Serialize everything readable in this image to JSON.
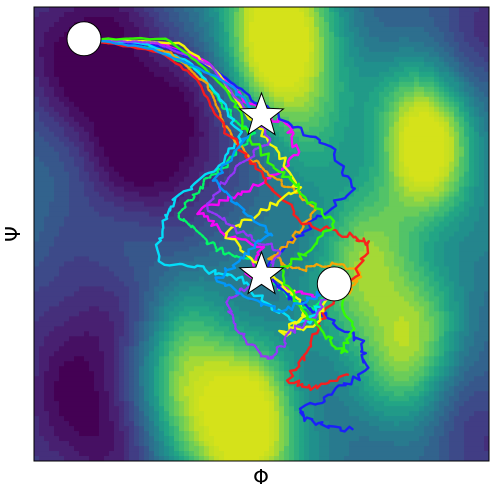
{
  "chart_data": {
    "type": "line",
    "title": "",
    "xlabel": "Φ",
    "ylabel": "Ψ",
    "xlim": [
      0,
      1
    ],
    "ylim": [
      0,
      1
    ],
    "grid": false,
    "legend": "none",
    "background": {
      "kind": "contour",
      "colormap": "viridis",
      "contour_line_color": "#ffffff",
      "low_color": "#440154",
      "high_color": "#d5e21a",
      "peaks": [
        {
          "x": 0.52,
          "y": 0.96,
          "level": 0.95
        },
        {
          "x": 0.86,
          "y": 0.71,
          "level": 1.0
        },
        {
          "x": 0.47,
          "y": 0.07,
          "level": 1.0
        },
        {
          "x": 0.83,
          "y": 0.24,
          "level": 0.65
        },
        {
          "x": 0.33,
          "y": 0.17,
          "level": 0.7
        },
        {
          "x": 0.72,
          "y": 0.42,
          "level": 0.55
        },
        {
          "x": 0.6,
          "y": 0.82,
          "level": 0.45
        }
      ],
      "basins": [
        {
          "x": 0.27,
          "y": 0.7,
          "depth": 1.0
        },
        {
          "x": 0.1,
          "y": 0.93,
          "depth": 0.85
        },
        {
          "x": 0.1,
          "y": 0.3,
          "depth": 0.6
        },
        {
          "x": 0.12,
          "y": 0.05,
          "depth": 0.75
        },
        {
          "x": 0.97,
          "y": 0.93,
          "depth": 0.6
        },
        {
          "x": 0.96,
          "y": 0.07,
          "depth": 0.55
        }
      ]
    },
    "markers": [
      {
        "kind": "circle",
        "role": "start",
        "x": 0.11,
        "y": 0.93
      },
      {
        "kind": "star",
        "x": 0.5,
        "y": 0.76
      },
      {
        "kind": "star",
        "x": 0.5,
        "y": 0.41
      },
      {
        "kind": "circle",
        "role": "end",
        "x": 0.66,
        "y": 0.39
      }
    ],
    "series": [
      {
        "color": "#ff00ff",
        "values": [
          [
            0.11,
            0.93
          ],
          [
            0.28,
            0.92
          ],
          [
            0.38,
            0.88
          ],
          [
            0.44,
            0.82
          ],
          [
            0.5,
            0.76
          ],
          [
            0.56,
            0.74
          ],
          [
            0.58,
            0.68
          ],
          [
            0.52,
            0.62
          ],
          [
            0.44,
            0.58
          ],
          [
            0.36,
            0.55
          ],
          [
            0.42,
            0.5
          ],
          [
            0.5,
            0.47
          ],
          [
            0.47,
            0.41
          ],
          [
            0.55,
            0.38
          ],
          [
            0.62,
            0.36
          ],
          [
            0.66,
            0.39
          ]
        ]
      },
      {
        "color": "#00ff66",
        "values": [
          [
            0.11,
            0.93
          ],
          [
            0.26,
            0.91
          ],
          [
            0.36,
            0.86
          ],
          [
            0.42,
            0.78
          ],
          [
            0.48,
            0.72
          ],
          [
            0.43,
            0.66
          ],
          [
            0.36,
            0.6
          ],
          [
            0.32,
            0.54
          ],
          [
            0.4,
            0.47
          ],
          [
            0.48,
            0.44
          ],
          [
            0.54,
            0.38
          ],
          [
            0.6,
            0.33
          ],
          [
            0.64,
            0.36
          ],
          [
            0.66,
            0.39
          ]
        ]
      },
      {
        "color": "#1a1aff",
        "values": [
          [
            0.11,
            0.93
          ],
          [
            0.3,
            0.91
          ],
          [
            0.4,
            0.86
          ],
          [
            0.48,
            0.8
          ],
          [
            0.57,
            0.74
          ],
          [
            0.66,
            0.68
          ],
          [
            0.7,
            0.6
          ],
          [
            0.63,
            0.54
          ],
          [
            0.56,
            0.48
          ],
          [
            0.5,
            0.42
          ],
          [
            0.56,
            0.36
          ],
          [
            0.64,
            0.32
          ],
          [
            0.72,
            0.26
          ],
          [
            0.73,
            0.2
          ],
          [
            0.66,
            0.15
          ],
          [
            0.58,
            0.11
          ],
          [
            0.62,
            0.08
          ],
          [
            0.7,
            0.07
          ]
        ]
      },
      {
        "color": "#00e5ff",
        "values": [
          [
            0.11,
            0.93
          ],
          [
            0.24,
            0.92
          ],
          [
            0.34,
            0.88
          ],
          [
            0.41,
            0.8
          ],
          [
            0.46,
            0.71
          ],
          [
            0.39,
            0.64
          ],
          [
            0.31,
            0.58
          ],
          [
            0.28,
            0.52
          ],
          [
            0.27,
            0.44
          ],
          [
            0.38,
            0.42
          ],
          [
            0.46,
            0.4
          ],
          [
            0.52,
            0.34
          ],
          [
            0.6,
            0.3
          ],
          [
            0.66,
            0.39
          ]
        ]
      },
      {
        "color": "#ffa500",
        "values": [
          [
            0.11,
            0.93
          ],
          [
            0.3,
            0.9
          ],
          [
            0.38,
            0.83
          ],
          [
            0.42,
            0.74
          ],
          [
            0.48,
            0.66
          ],
          [
            0.55,
            0.61
          ],
          [
            0.62,
            0.56
          ],
          [
            0.58,
            0.5
          ],
          [
            0.52,
            0.45
          ],
          [
            0.58,
            0.42
          ],
          [
            0.66,
            0.44
          ],
          [
            0.72,
            0.42
          ],
          [
            0.68,
            0.36
          ],
          [
            0.66,
            0.39
          ]
        ]
      },
      {
        "color": "#ff1a1a",
        "values": [
          [
            0.11,
            0.93
          ],
          [
            0.28,
            0.9
          ],
          [
            0.36,
            0.84
          ],
          [
            0.4,
            0.76
          ],
          [
            0.46,
            0.68
          ],
          [
            0.52,
            0.6
          ],
          [
            0.6,
            0.52
          ],
          [
            0.68,
            0.5
          ],
          [
            0.74,
            0.48
          ],
          [
            0.7,
            0.4
          ],
          [
            0.64,
            0.33
          ],
          [
            0.6,
            0.24
          ],
          [
            0.56,
            0.18
          ],
          [
            0.62,
            0.16
          ],
          [
            0.69,
            0.19
          ]
        ]
      },
      {
        "color": "#ffff00",
        "values": [
          [
            0.11,
            0.93
          ],
          [
            0.32,
            0.92
          ],
          [
            0.4,
            0.86
          ],
          [
            0.47,
            0.76
          ],
          [
            0.54,
            0.68
          ],
          [
            0.58,
            0.6
          ],
          [
            0.5,
            0.55
          ],
          [
            0.42,
            0.5
          ],
          [
            0.48,
            0.44
          ],
          [
            0.56,
            0.38
          ],
          [
            0.6,
            0.32
          ],
          [
            0.54,
            0.28
          ],
          [
            0.62,
            0.3
          ],
          [
            0.66,
            0.39
          ]
        ]
      },
      {
        "color": "#9933ff",
        "values": [
          [
            0.11,
            0.93
          ],
          [
            0.27,
            0.92
          ],
          [
            0.39,
            0.87
          ],
          [
            0.45,
            0.79
          ],
          [
            0.52,
            0.71
          ],
          [
            0.44,
            0.64
          ],
          [
            0.38,
            0.56
          ],
          [
            0.46,
            0.5
          ],
          [
            0.54,
            0.46
          ],
          [
            0.5,
            0.4
          ],
          [
            0.42,
            0.35
          ],
          [
            0.46,
            0.27
          ],
          [
            0.52,
            0.22
          ],
          [
            0.56,
            0.28
          ],
          [
            0.62,
            0.32
          ],
          [
            0.66,
            0.39
          ]
        ]
      },
      {
        "color": "#33ff00",
        "values": [
          [
            0.11,
            0.93
          ],
          [
            0.29,
            0.93
          ],
          [
            0.37,
            0.87
          ],
          [
            0.43,
            0.81
          ],
          [
            0.47,
            0.72
          ],
          [
            0.54,
            0.64
          ],
          [
            0.6,
            0.58
          ],
          [
            0.66,
            0.52
          ],
          [
            0.6,
            0.46
          ],
          [
            0.54,
            0.42
          ],
          [
            0.58,
            0.34
          ],
          [
            0.64,
            0.28
          ],
          [
            0.68,
            0.24
          ],
          [
            0.7,
            0.3
          ],
          [
            0.66,
            0.39
          ]
        ]
      },
      {
        "color": "#0099ff",
        "values": [
          [
            0.11,
            0.93
          ],
          [
            0.25,
            0.91
          ],
          [
            0.35,
            0.87
          ],
          [
            0.43,
            0.83
          ],
          [
            0.49,
            0.76
          ],
          [
            0.45,
            0.69
          ],
          [
            0.4,
            0.62
          ],
          [
            0.46,
            0.55
          ],
          [
            0.52,
            0.5
          ],
          [
            0.46,
            0.45
          ],
          [
            0.4,
            0.4
          ],
          [
            0.47,
            0.36
          ],
          [
            0.55,
            0.33
          ],
          [
            0.62,
            0.36
          ],
          [
            0.66,
            0.39
          ]
        ]
      }
    ]
  }
}
